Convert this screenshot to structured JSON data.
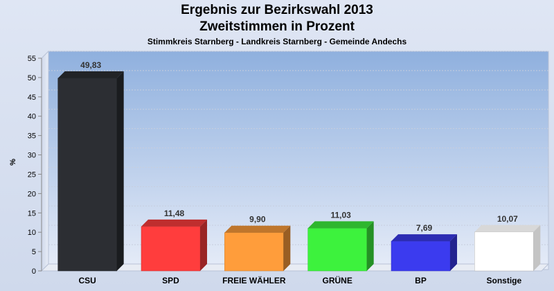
{
  "title": "Ergebnis zur Bezirkswahl 2013",
  "subtitle": "Zweitstimmen in Prozent",
  "subsubtitle": "Stimmkreis Starnberg - Landkreis Starnberg - Gemeinde Andechs",
  "chart_data": {
    "type": "bar",
    "title": "Ergebnis zur Bezirkswahl 2013",
    "subtitle": "Zweitstimmen in Prozent",
    "ylabel": "%",
    "ylim": [
      0,
      55
    ],
    "yticks": [
      "0",
      "5",
      "10",
      "15",
      "20",
      "25",
      "30",
      "35",
      "40",
      "45",
      "50",
      "55"
    ],
    "categories": [
      "CSU",
      "SPD",
      "FREIE WÄHLER",
      "GRÜNE",
      "BP",
      "Sonstige"
    ],
    "values": [
      49.83,
      11.48,
      9.9,
      11.03,
      7.69,
      10.07
    ],
    "value_labels": [
      "49,83",
      "11,48",
      "9,90",
      "11,03",
      "7,69",
      "10,07"
    ],
    "colors": [
      "#2c2e33",
      "#ff3d3d",
      "#ff9d3b",
      "#3df23d",
      "#3b3bef",
      "#ffffff"
    ],
    "grid": true,
    "legend": "none"
  }
}
